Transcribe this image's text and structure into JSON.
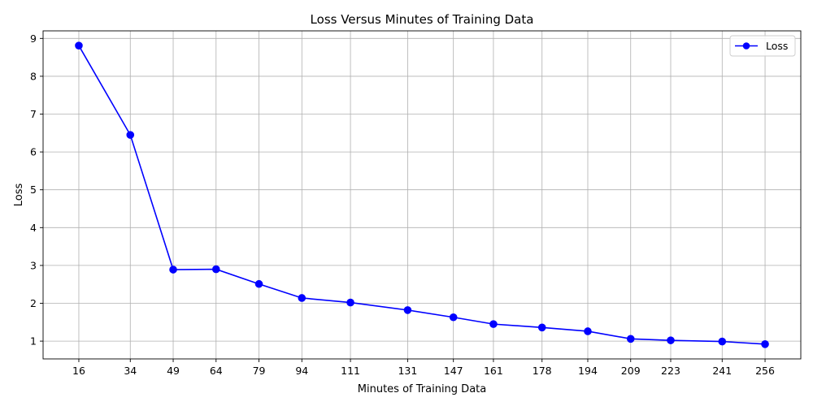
{
  "chart_data": {
    "type": "line",
    "title": "Loss Versus Minutes of Training Data",
    "xlabel": "Minutes of Training Data",
    "ylabel": "Loss",
    "x": [
      16,
      34,
      49,
      64,
      79,
      94,
      111,
      131,
      147,
      161,
      178,
      194,
      209,
      223,
      241,
      256
    ],
    "series": [
      {
        "name": "Loss",
        "color": "#0000ff",
        "marker": "circle",
        "values": [
          8.81,
          6.45,
          2.89,
          2.9,
          2.51,
          2.14,
          2.02,
          1.82,
          1.63,
          1.45,
          1.36,
          1.26,
          1.06,
          1.02,
          0.99,
          0.92
        ]
      }
    ],
    "xticks": [
      16,
      34,
      49,
      64,
      79,
      94,
      111,
      131,
      147,
      161,
      178,
      194,
      209,
      223,
      241,
      256
    ],
    "yticks": [
      1,
      2,
      3,
      4,
      5,
      6,
      7,
      8,
      9
    ],
    "xlim": [
      3.5,
      268.5
    ],
    "ylim": [
      0.53,
      9.2
    ],
    "grid": true,
    "legend_position": "top-right"
  }
}
